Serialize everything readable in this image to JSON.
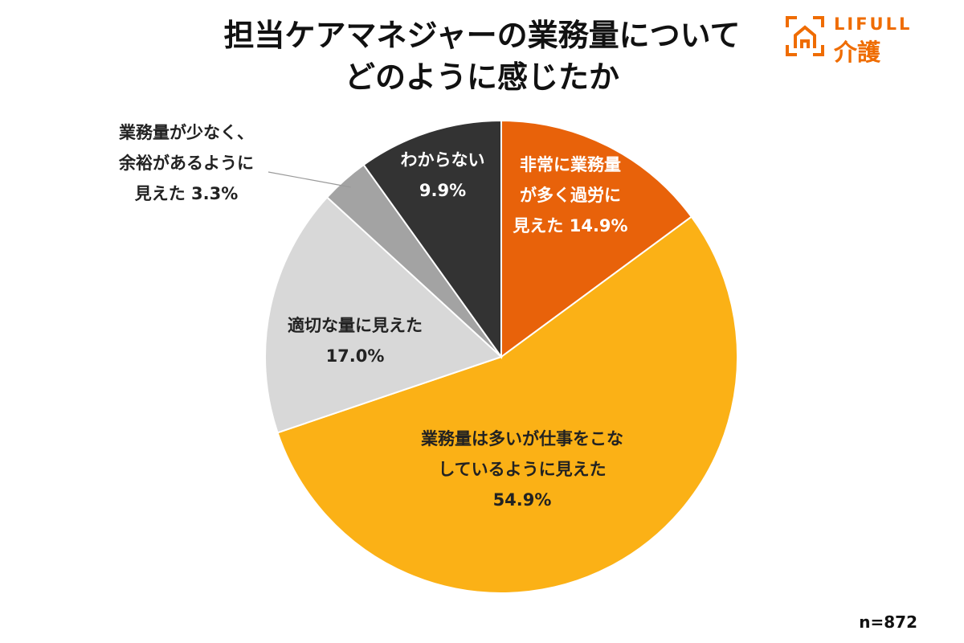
{
  "title": {
    "line1": "担当ケアマネジャーの業務量について",
    "line2": "どのように感じたか"
  },
  "logo": {
    "word": "LIFULL",
    "sub": "介護",
    "color": "#ef6c00"
  },
  "sample_size": "n=872",
  "chart_data": {
    "type": "pie",
    "title": "担当ケアマネジャーの業務量についてどのように感じたか",
    "start_angle_deg": 0,
    "direction": "clockwise",
    "slices": [
      {
        "name": "非常に業務量が多く過労に見えた",
        "value": 14.9,
        "label_lines": [
          "非常に業務量",
          "が多く過労に",
          "見えた 14.9%"
        ],
        "color": "#e8620a",
        "label_color": "#ffffff"
      },
      {
        "name": "業務量は多いが仕事をこなしているように見えた",
        "value": 54.9,
        "label_lines": [
          "業務量は多いが仕事をこな",
          "しているように見えた",
          "54.9%"
        ],
        "color": "#fbb116",
        "label_color": "#222222"
      },
      {
        "name": "適切な量に見えた",
        "value": 17.0,
        "label_lines": [
          "適切な量に見えた",
          "17.0%"
        ],
        "color": "#d8d8d8",
        "label_color": "#222222"
      },
      {
        "name": "業務量が少なく、余裕があるように見えた",
        "value": 3.3,
        "label_lines": [
          "業務量が少なく、",
          "余裕があるように",
          "見えた 3.3%"
        ],
        "color": "#a3a3a3",
        "label_color": "#222222",
        "label_outside": true
      },
      {
        "name": "わからない",
        "value": 9.9,
        "label_lines": [
          "わからない",
          "9.9%"
        ],
        "color": "#333333",
        "label_color": "#ffffff"
      }
    ]
  }
}
